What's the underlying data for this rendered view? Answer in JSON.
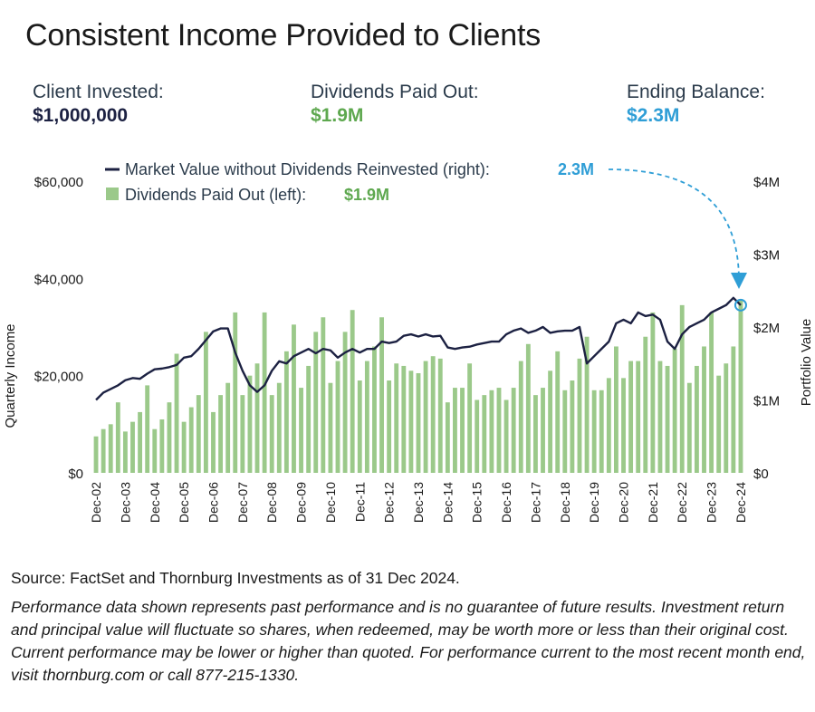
{
  "title": "Consistent Income Provided to Clients",
  "stats": [
    {
      "label": "Client Invested:",
      "value": "$1,000,000",
      "color": "#1c2142"
    },
    {
      "label": "Dividends Paid Out:",
      "value": "$1.9M",
      "color": "#5ea84f"
    },
    {
      "label": "Ending Balance:",
      "value": "$2.3M",
      "color": "#2f9ed6"
    }
  ],
  "source": "Source: FactSet and Thornburg Investments as of 31 Dec 2024.",
  "disclaimer": "Performance data shown represents past performance and is no guarantee of future results. Investment return and principal value will fluctuate so shares, when redeemed, may be worth more or less than their original cost. Current performance may be lower or higher than quoted. For performance current to the most recent month end, visit thornburg.com or call 877-215-1330.",
  "colors": {
    "bar": "#9bc98a",
    "line": "#1c2142",
    "accent": "#2f9ed6",
    "green_text": "#5ea84f"
  },
  "chart_data": {
    "type": "bar",
    "ylabel_left": "Quarterly Income",
    "ylabel_right": "Portfolio Value",
    "ylim_left": [
      0,
      60000
    ],
    "ylim_right": [
      0,
      4000000
    ],
    "yticks_left": [
      "$0",
      "$20,000",
      "$40,000",
      "$60,000"
    ],
    "yticks_right": [
      "$0",
      "$1M",
      "$2M",
      "$3M",
      "$4M"
    ],
    "xtick_labels": [
      "Dec-02",
      "Dec-03",
      "Dec-04",
      "Dec-05",
      "Dec-06",
      "Dec-07",
      "Dec-08",
      "Dec-09",
      "Dec-10",
      "Dec-11",
      "Dec-12",
      "Dec-13",
      "Dec-14",
      "Dec-15",
      "Dec-16",
      "Dec-17",
      "Dec-18",
      "Dec-19",
      "Dec-20",
      "Dec-21",
      "Dec-22",
      "Dec-23",
      "Dec-24"
    ],
    "legend": [
      {
        "label": "Market Value without Dividends Reinvested (right):",
        "value": "2.3M",
        "kind": "line"
      },
      {
        "label": "Dividends Paid Out (left):",
        "value": "$1.9M",
        "kind": "bar"
      }
    ],
    "series": [
      {
        "name": "Dividends Paid Out (left):",
        "axis": "left",
        "kind": "bar",
        "values": [
          7500,
          9000,
          10000,
          14500,
          8500,
          10500,
          12500,
          18000,
          9000,
          11000,
          14500,
          24500,
          10500,
          13500,
          16000,
          29000,
          12500,
          16000,
          18500,
          33000,
          16000,
          20000,
          22500,
          33000,
          16000,
          18500,
          25000,
          30500,
          17500,
          22000,
          29000,
          32000,
          18500,
          23000,
          29000,
          33500,
          19000,
          23000,
          26000,
          32000,
          19000,
          22500,
          22000,
          21000,
          20500,
          23000,
          24000,
          23500,
          14500,
          17500,
          17500,
          22500,
          15000,
          16000,
          17000,
          17500,
          15000,
          17500,
          23000,
          26500,
          16000,
          17500,
          21000,
          25000,
          17000,
          19000,
          23500,
          28000,
          17000,
          17000,
          19500,
          26000,
          19500,
          23000,
          23000,
          28000,
          33000,
          23000,
          22000,
          25500,
          34500,
          18500,
          22000,
          26000,
          33000,
          20000,
          22500,
          26000,
          35500
        ]
      },
      {
        "name": "Market Value without Dividends Reinvested (right):",
        "axis": "right",
        "kind": "line",
        "values": [
          1000000,
          1100000,
          1150000,
          1200000,
          1270000,
          1300000,
          1290000,
          1360000,
          1420000,
          1430000,
          1450000,
          1480000,
          1580000,
          1600000,
          1700000,
          1820000,
          1940000,
          1980000,
          1980000,
          1650000,
          1400000,
          1200000,
          1110000,
          1200000,
          1400000,
          1530000,
          1500000,
          1600000,
          1650000,
          1700000,
          1640000,
          1700000,
          1680000,
          1580000,
          1650000,
          1700000,
          1650000,
          1700000,
          1700000,
          1800000,
          1780000,
          1800000,
          1880000,
          1900000,
          1870000,
          1900000,
          1870000,
          1880000,
          1720000,
          1700000,
          1720000,
          1730000,
          1760000,
          1780000,
          1800000,
          1800000,
          1900000,
          1950000,
          1980000,
          1920000,
          1950000,
          2000000,
          1920000,
          1940000,
          1950000,
          1950000,
          2000000,
          1500000,
          1600000,
          1700000,
          1800000,
          2050000,
          2100000,
          2050000,
          2200000,
          2150000,
          2170000,
          2100000,
          1800000,
          1700000,
          1900000,
          2000000,
          2050000,
          2100000,
          2200000,
          2250000,
          2300000,
          2400000,
          2300000
        ]
      }
    ],
    "annotation": {
      "label": "2.3M",
      "target": "last line point"
    }
  }
}
